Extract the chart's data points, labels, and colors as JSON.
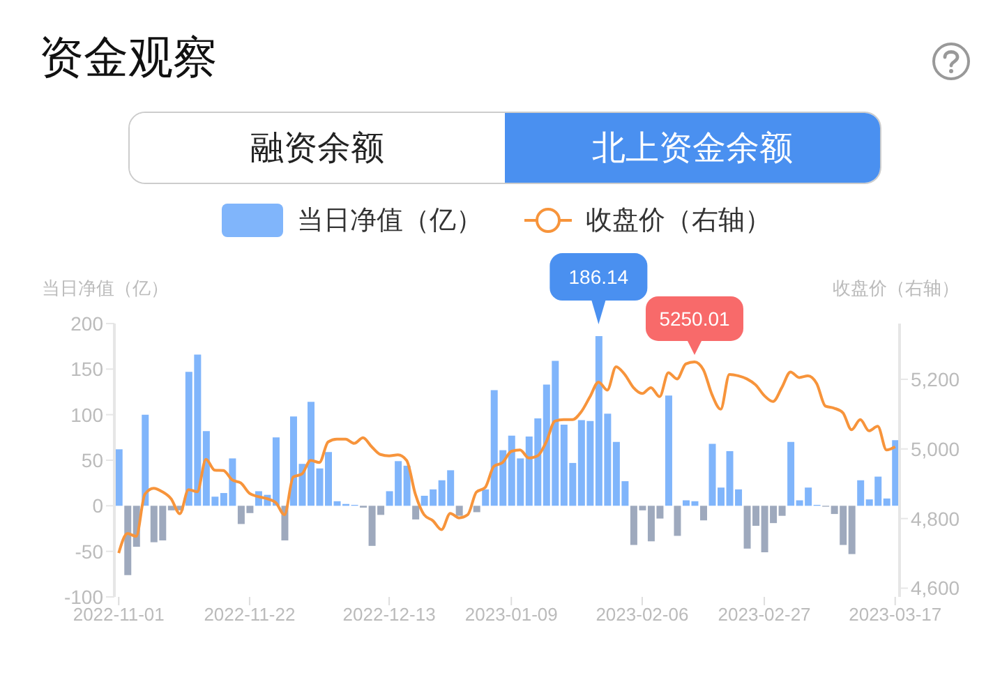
{
  "chart_data": {
    "type": "bar",
    "title": "资金观察",
    "annotations": [
      "融资余额",
      "北上资金余额"
    ],
    "ylabel": "当日净值（亿）",
    "y2label": "收盘价（右轴）",
    "categories": [
      "2022-11-01",
      null,
      null,
      null,
      null,
      null,
      null,
      null,
      null,
      null,
      null,
      null,
      null,
      null,
      null,
      "2022-11-22",
      null,
      null,
      null,
      null,
      null,
      null,
      null,
      null,
      null,
      null,
      null,
      null,
      null,
      null,
      null,
      "2022-12-13",
      null,
      null,
      null,
      null,
      null,
      null,
      null,
      null,
      null,
      null,
      null,
      null,
      null,
      "2023-01-09",
      null,
      null,
      null,
      null,
      null,
      null,
      null,
      null,
      null,
      null,
      null,
      null,
      null,
      null,
      "2023-02-06",
      null,
      null,
      null,
      null,
      null,
      null,
      null,
      null,
      null,
      null,
      null,
      null,
      null,
      "2023-02-27",
      null,
      null,
      null,
      null,
      null,
      null,
      null,
      null,
      null,
      null,
      null,
      null,
      null,
      null,
      "2023-03-17"
    ],
    "series": [
      {
        "name": "当日净值（亿）",
        "color": "#80b5fb",
        "values": [
          62,
          -76,
          -45,
          100,
          -40,
          -38,
          -5,
          -5,
          147,
          166,
          82,
          10,
          14,
          52,
          -20,
          -8,
          16,
          12,
          75,
          -38,
          98,
          46,
          114,
          41,
          59,
          5,
          2,
          1,
          -2,
          -44,
          -10,
          16,
          49,
          44,
          -15,
          11,
          18,
          28,
          39,
          -11,
          0,
          -7,
          18,
          127,
          61,
          77,
          52,
          76,
          96,
          133,
          159,
          89,
          47,
          94,
          93,
          186.14,
          101,
          70,
          27,
          -43,
          -5,
          -39,
          -14,
          121,
          -33,
          6,
          5,
          -16,
          68,
          20,
          60,
          18,
          -47,
          -22,
          -51,
          -19,
          -11,
          70,
          6,
          20,
          1,
          -1,
          -9,
          -43,
          -53,
          28,
          7,
          32,
          8,
          72
        ],
        "colors": [
          "#80b5fb",
          "#9ea9bd",
          "#9ea9bd",
          "#80b5fb",
          "#9ea9bd",
          "#9ea9bd",
          "#9ea9bd",
          "#9ea9bd",
          "#80b5fb",
          "#80b5fb",
          "#80b5fb",
          "#80b5fb",
          "#80b5fb",
          "#80b5fb",
          "#9ea9bd",
          "#9ea9bd",
          "#80b5fb",
          "#80b5fb",
          "#80b5fb",
          "#9ea9bd",
          "#80b5fb",
          "#80b5fb",
          "#80b5fb",
          "#80b5fb",
          "#80b5fb",
          "#80b5fb",
          "#80b5fb",
          "#80b5fb",
          "#9ea9bd",
          "#9ea9bd",
          "#9ea9bd",
          "#80b5fb",
          "#80b5fb",
          "#80b5fb",
          "#9ea9bd",
          "#80b5fb",
          "#80b5fb",
          "#80b5fb",
          "#80b5fb",
          "#9ea9bd",
          "#80b5fb",
          "#9ea9bd",
          "#80b5fb",
          "#80b5fb",
          "#80b5fb",
          "#80b5fb",
          "#80b5fb",
          "#80b5fb",
          "#80b5fb",
          "#80b5fb",
          "#80b5fb",
          "#80b5fb",
          "#80b5fb",
          "#80b5fb",
          "#80b5fb",
          "#80b5fb",
          "#80b5fb",
          "#80b5fb",
          "#80b5fb",
          "#9ea9bd",
          "#9ea9bd",
          "#9ea9bd",
          "#9ea9bd",
          "#80b5fb",
          "#9ea9bd",
          "#80b5fb",
          "#80b5fb",
          "#9ea9bd",
          "#80b5fb",
          "#80b5fb",
          "#80b5fb",
          "#80b5fb",
          "#9ea9bd",
          "#9ea9bd",
          "#9ea9bd",
          "#9ea9bd",
          "#9ea9bd",
          "#80b5fb",
          "#80b5fb",
          "#80b5fb",
          "#80b5fb",
          "#9ea9bd",
          "#9ea9bd",
          "#9ea9bd",
          "#9ea9bd",
          "#80b5fb",
          "#80b5fb",
          "#80b5fb",
          "#80b5fb",
          "#80b5fb"
        ],
        "value_labels": [
          null,
          null,
          null,
          null,
          null,
          null,
          null,
          null,
          null,
          null,
          null,
          null,
          null,
          null,
          null,
          null,
          null,
          null,
          null,
          null,
          null,
          null,
          null,
          null,
          null,
          null,
          null,
          null,
          null,
          null,
          null,
          null,
          null,
          null,
          null,
          null,
          null,
          null,
          null,
          null,
          null,
          null,
          null,
          null,
          null,
          null,
          null,
          null,
          null,
          null,
          null,
          null,
          null,
          null,
          null,
          "186.14",
          null,
          null,
          null,
          null,
          null,
          null,
          null,
          null,
          null,
          null,
          null,
          null,
          null,
          null,
          null,
          null,
          null,
          null,
          null,
          null,
          null,
          null,
          null,
          null,
          null,
          null,
          null,
          null,
          null,
          null,
          null,
          null,
          null,
          null
        ]
      },
      {
        "name": "收盘价（右轴）",
        "type": "line",
        "axis": "y2",
        "color": "#f7943b",
        "values": [
          4701,
          4757,
          4749,
          4870,
          4887,
          4877,
          4857,
          4814,
          4883,
          4877,
          4970,
          4939,
          4938,
          4911,
          4902,
          4872,
          4863,
          4857,
          4846,
          4811,
          4919,
          4928,
          4967,
          4961,
          5020,
          5028,
          5028,
          5016,
          5032,
          5006,
          4984,
          4980,
          4983,
          4967,
          4870,
          4811,
          4794,
          4768,
          4815,
          4802,
          4811,
          4876,
          4889,
          4950,
          4961,
          4993,
          4997,
          4974,
          4980,
          5020,
          5080,
          5084,
          5084,
          5106,
          5149,
          5192,
          5169,
          5236,
          5214,
          5176,
          5159,
          5176,
          5150,
          5219,
          5201,
          5244,
          5250.01,
          5228,
          5156,
          5114,
          5214,
          5210,
          5201,
          5184,
          5153,
          5136,
          5176,
          5221,
          5205,
          5210,
          5188,
          5123,
          5117,
          5104,
          5055,
          5084,
          5052,
          5065,
          4997,
          5006
        ],
        "value_labels": [
          null,
          null,
          null,
          null,
          null,
          null,
          null,
          null,
          null,
          null,
          null,
          null,
          null,
          null,
          null,
          null,
          null,
          null,
          null,
          null,
          null,
          null,
          null,
          null,
          null,
          null,
          null,
          null,
          null,
          null,
          null,
          null,
          null,
          null,
          null,
          null,
          null,
          null,
          null,
          null,
          null,
          null,
          null,
          null,
          null,
          null,
          null,
          null,
          null,
          null,
          null,
          null,
          null,
          null,
          null,
          null,
          null,
          null,
          null,
          null,
          null,
          null,
          null,
          null,
          null,
          null,
          "5250.01",
          null,
          null,
          null,
          null,
          null,
          null,
          null,
          null,
          null,
          null,
          null,
          null,
          null,
          null,
          null,
          null,
          null,
          null,
          null,
          null,
          null,
          null,
          null
        ]
      }
    ],
    "ylim": [
      -100,
      200
    ],
    "yticks": [
      -100,
      -50,
      0,
      50,
      100,
      150,
      200
    ],
    "y2lim": [
      4575,
      5360
    ],
    "y2ticks": [
      {
        "value": 4600,
        "label": "4,600"
      },
      {
        "value": 4800,
        "label": "4,800"
      },
      {
        "value": 5000,
        "label": "5,000"
      },
      {
        "value": 5200,
        "label": "5,200"
      }
    ],
    "grid": false,
    "legend": "top",
    "marker": "none",
    "line_style": "solid"
  }
}
